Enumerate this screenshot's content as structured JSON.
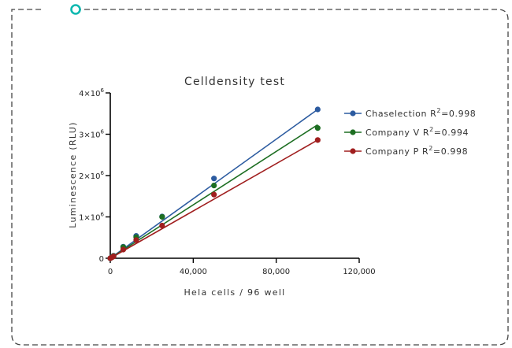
{
  "chart_data": {
    "type": "scatter",
    "title": "Celldensity test",
    "xlabel": "Hela cells / 96 well",
    "ylabel": "Luminescence (RLU)",
    "xlim": [
      0,
      120000
    ],
    "ylim": [
      0,
      4000000
    ],
    "x_ticks": [
      0,
      40000,
      80000,
      120000
    ],
    "x_tick_labels": [
      "0",
      "40,000",
      "80,000",
      "120,000"
    ],
    "y_ticks": [
      0,
      1000000,
      2000000,
      3000000,
      4000000
    ],
    "y_tick_labels": [
      {
        "base": "0",
        "exp": ""
      },
      {
        "base": "1×10",
        "exp": "6"
      },
      {
        "base": "2×10",
        "exp": "6"
      },
      {
        "base": "3×10",
        "exp": "6"
      },
      {
        "base": "4×10",
        "exp": "6"
      }
    ],
    "grid": false,
    "legend_position": "right",
    "series": [
      {
        "name_prefix": "Chaselection R",
        "name_suffix": "=0.998",
        "name_exp": "2",
        "color": "#2c5ba0",
        "x": [
          0,
          781,
          1563,
          6250,
          12500,
          25000,
          50000,
          100000
        ],
        "y": [
          0,
          30000,
          60000,
          280000,
          540000,
          1010000,
          1930000,
          3600000
        ],
        "fit": [
          [
            0,
            0
          ],
          [
            100000,
            3600000
          ]
        ]
      },
      {
        "name_prefix": "Company V R",
        "name_suffix": "=0.994",
        "name_exp": "2",
        "color": "#1d6e22",
        "x": [
          0,
          781,
          1563,
          6250,
          12500,
          25000,
          50000,
          100000
        ],
        "y": [
          0,
          25000,
          55000,
          270000,
          510000,
          1000000,
          1760000,
          3150000
        ],
        "fit": [
          [
            0,
            0
          ],
          [
            100000,
            3230000
          ]
        ]
      },
      {
        "name_prefix": "Company P R",
        "name_suffix": "=0.998",
        "name_exp": "2",
        "color": "#a01e1e",
        "x": [
          0,
          781,
          1563,
          6250,
          12500,
          25000,
          50000,
          100000
        ],
        "y": [
          0,
          20000,
          45000,
          210000,
          440000,
          790000,
          1540000,
          2860000
        ],
        "fit": [
          [
            0,
            0
          ],
          [
            100000,
            2860000
          ]
        ]
      }
    ]
  },
  "decor": {
    "frame_color": "#444444",
    "frame_marker_color": "#0fb8b0"
  }
}
